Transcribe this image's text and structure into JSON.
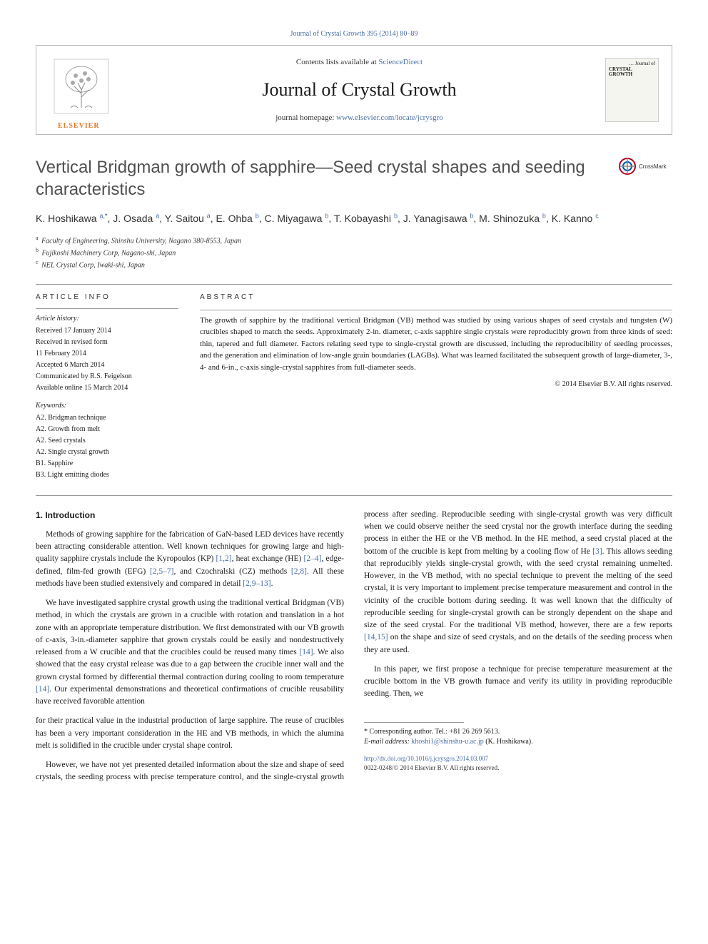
{
  "top_citation": "Journal of Crystal Growth 395 (2014) 80–89",
  "header": {
    "contents_prefix": "Contents lists available at ",
    "contents_link": "ScienceDirect",
    "journal_name": "Journal of Crystal Growth",
    "homepage_prefix": "journal homepage: ",
    "homepage_url": "www.elsevier.com/locate/jcrysgro",
    "publisher_label": "ELSEVIER",
    "cover_text_top": "… Journal of",
    "cover_text_main": "CRYSTAL GROWTH"
  },
  "crossmark_label": "CrossMark",
  "title": "Vertical Bridgman growth of sapphire—Seed crystal shapes and seeding characteristics",
  "authors_html": "K. Hoshikawa <sup>a,</sup><sup class='ast'>*</sup>, J. Osada <sup>a</sup>, Y. Saitou <sup>a</sup>, E. Ohba <sup>b</sup>, C. Miyagawa <sup>b</sup>, T. Kobayashi <sup>b</sup>, J. Yanagisawa <sup>b</sup>, M. Shinozuka <sup>b</sup>, K. Kanno <sup>c</sup>",
  "affiliations": [
    {
      "sup": "a",
      "text": "Faculty of Engineering, Shinshu University, Nagano 380-8553, Japan"
    },
    {
      "sup": "b",
      "text": "Fujikoshi Machinery Corp, Nagano-shi, Japan"
    },
    {
      "sup": "c",
      "text": "NEL Crystal Corp, Iwaki-shi, Japan"
    }
  ],
  "article_info": {
    "heading": "ARTICLE INFO",
    "history_label": "Article history:",
    "history": [
      "Received 17 January 2014",
      "Received in revised form",
      "11 February 2014",
      "Accepted 6 March 2014",
      "Communicated by R.S. Feigelson",
      "Available online 15 March 2014"
    ],
    "keywords_label": "Keywords:",
    "keywords": [
      "A2. Bridgman technique",
      "A2. Growth from melt",
      "A2. Seed crystals",
      "A2. Single crystal growth",
      "B1. Sapphire",
      "B3. Light emitting diodes"
    ]
  },
  "abstract": {
    "heading": "ABSTRACT",
    "text": "The growth of sapphire by the traditional vertical Bridgman (VB) method was studied by using various shapes of seed crystals and tungsten (W) crucibles shaped to match the seeds. Approximately 2-in. diameter, c-axis sapphire single crystals were reproducibly grown from three kinds of seed: thin, tapered and full diameter. Factors relating seed type to single-crystal growth are discussed, including the reproducibility of seeding processes, and the generation and elimination of low-angle grain boundaries (LAGBs). What was learned facilitated the subsequent growth of large-diameter, 3-, 4- and 6-in., c-axis single-crystal sapphires from full-diameter seeds.",
    "copyright": "© 2014 Elsevier B.V. All rights reserved."
  },
  "section1": {
    "heading": "1. Introduction",
    "paragraphs": [
      "Methods of growing sapphire for the fabrication of GaN-based LED devices have recently been attracting considerable attention. Well known techniques for growing large and high-quality sapphire crystals include the Kyropoulos (KP) <a href='#'>[1,2]</a>, heat exchange (HE) <a href='#'>[2–4]</a>, edge-defined, film-fed growth (EFG) <a href='#'>[2,5–7]</a>, and Czochralski (CZ) methods <a href='#'>[2,8]</a>. All these methods have been studied extensively and compared in detail <a href='#'>[2,9–13]</a>.",
      "We have investigated sapphire crystal growth using the traditional vertical Bridgman (VB) method, in which the crystals are grown in a crucible with rotation and translation in a hot zone with an appropriate temperature distribution. We first demonstrated with our VB growth of c-axis, 3-in.-diameter sapphire that grown crystals could be easily and nondestructively released from a W crucible and that the crucibles could be reused many times <a href='#'>[14]</a>. We also showed that the easy crystal release was due to a gap between the crucible inner wall and the grown crystal formed by differential thermal contraction during cooling to room temperature <a href='#'>[14]</a>. Our experimental demonstrations and theoretical confirmations of crucible reusability have received favorable attention",
      "for their practical value in the industrial production of large sapphire. The reuse of crucibles has been a very important consideration in the HE and VB methods, in which the alumina melt is solidified in the crucible under crystal shape control.",
      "However, we have not yet presented detailed information about the size and shape of seed crystals, the seeding process with precise temperature control, and the single-crystal growth process after seeding. Reproducible seeding with single-crystal growth was very difficult when we could observe neither the seed crystal nor the growth interface during the seeding process in either the HE or the VB method. In the HE method, a seed crystal placed at the bottom of the crucible is kept from melting by a cooling flow of He <a href='#'>[3]</a>. This allows seeding that reproducibly yields single-crystal growth, with the seed crystal remaining unmelted. However, in the VB method, with no special technique to prevent the melting of the seed crystal, it is very important to implement precise temperature measurement and control in the vicinity of the crucible bottom during seeding. It was well known that the difficulty of reproducible seeding for single-crystal growth can be strongly dependent on the shape and size of the seed crystal. For the traditional VB method, however, there are a few reports <a href='#'>[14,15]</a> on the shape and size of seed crystals, and on the details of the seeding process when they are used.",
      "In this paper, we first propose a technique for precise temperature measurement at the crucible bottom in the VB growth furnace and verify its utility in providing reproducible seeding. Then, we"
    ]
  },
  "footnote": {
    "corresponding": "* Corresponding author. Tel.: +81 26 269 5613.",
    "email_label": "E-mail address: ",
    "email": "khoshi1@shinshu-u.ac.jp",
    "email_suffix": " (K. Hoshikawa)."
  },
  "doi": "http://dx.doi.org/10.1016/j.jcrysgro.2014.03.007",
  "issn_line": "0022-0248/© 2014 Elsevier B.V. All rights reserved.",
  "colors": {
    "link": "#4a6fa5",
    "orange": "#e87722",
    "title_gray": "#505050",
    "border": "#b8b8b8"
  }
}
